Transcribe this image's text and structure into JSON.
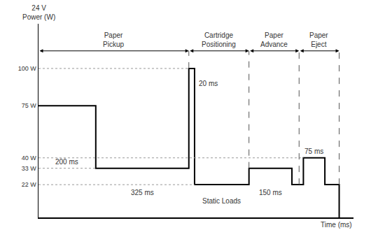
{
  "chart_data": {
    "type": "line",
    "line_style": "step",
    "color": "#000000",
    "y_label": [
      "24 V",
      "Power (W)"
    ],
    "x_label": "Time (ms)",
    "x": [
      0,
      200,
      525,
      545,
      735,
      885,
      925,
      1000,
      1050
    ],
    "values": [
      75,
      33,
      100,
      22,
      33,
      22,
      40,
      22,
      0
    ],
    "xlim": [
      0,
      1100
    ],
    "ylim": [
      0,
      130
    ],
    "yticks": [
      {
        "value": 22,
        "label": "22 W"
      },
      {
        "value": 33,
        "label": "33 W"
      },
      {
        "value": 40,
        "label": "40 W"
      },
      {
        "value": 75,
        "label": "75 W"
      },
      {
        "value": 100,
        "label": "100 W"
      }
    ],
    "tick_labels": "y",
    "grid": false,
    "phases": [
      {
        "label": "Paper Pickup",
        "start": 0,
        "end": 525
      },
      {
        "label": "Cartridge Positioning",
        "start": 525,
        "end": 735
      },
      {
        "label": "Paper Advance",
        "start": 735,
        "end": 910
      },
      {
        "label": "Paper Eject",
        "start": 910,
        "end": 1050
      }
    ],
    "duration_labels": [
      {
        "text": "200 ms",
        "start": 0,
        "end": 200,
        "power": 75
      },
      {
        "text": "325 ms",
        "start": 200,
        "end": 525,
        "power": 33
      },
      {
        "text": "20 ms",
        "start": 525,
        "end": 545,
        "power": 100
      },
      {
        "text": "150 ms",
        "start": 735,
        "end": 885,
        "power": 33
      },
      {
        "text": "75 ms",
        "start": 925,
        "end": 1000,
        "power": 40
      }
    ],
    "static_label": {
      "text": "Static Loads",
      "start": 545,
      "end": 735,
      "power": 22
    }
  }
}
